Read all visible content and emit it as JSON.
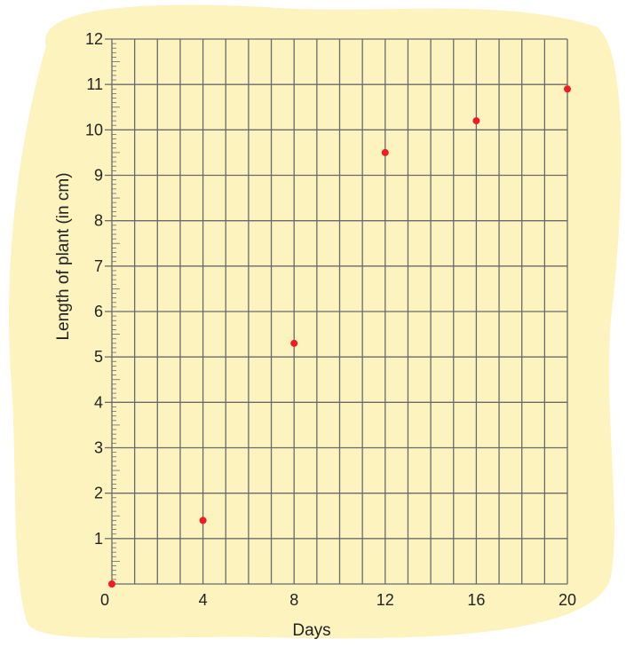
{
  "colors": {
    "background_blob": "#fdf3bf",
    "grid": "#6a6a6a",
    "minor_tick": "#6a6a6a",
    "point": "#ee1c24",
    "text": "#222222"
  },
  "chart_data": {
    "type": "scatter",
    "title": "",
    "xlabel": "Days",
    "ylabel": "Length of plant (in cm)",
    "xlim": [
      0,
      20
    ],
    "ylim": [
      0,
      12
    ],
    "x_ticks": [
      0,
      4,
      8,
      12,
      16,
      20
    ],
    "y_ticks": [
      1,
      2,
      3,
      4,
      5,
      6,
      7,
      8,
      9,
      10,
      11,
      12
    ],
    "grid": true,
    "x_grid_step": 1,
    "y_grid_step": 1,
    "points": [
      {
        "x": 0,
        "y": 0
      },
      {
        "x": 4,
        "y": 1.4
      },
      {
        "x": 8,
        "y": 5.3
      },
      {
        "x": 12,
        "y": 9.5
      },
      {
        "x": 16,
        "y": 10.2
      },
      {
        "x": 20,
        "y": 10.9
      }
    ]
  }
}
